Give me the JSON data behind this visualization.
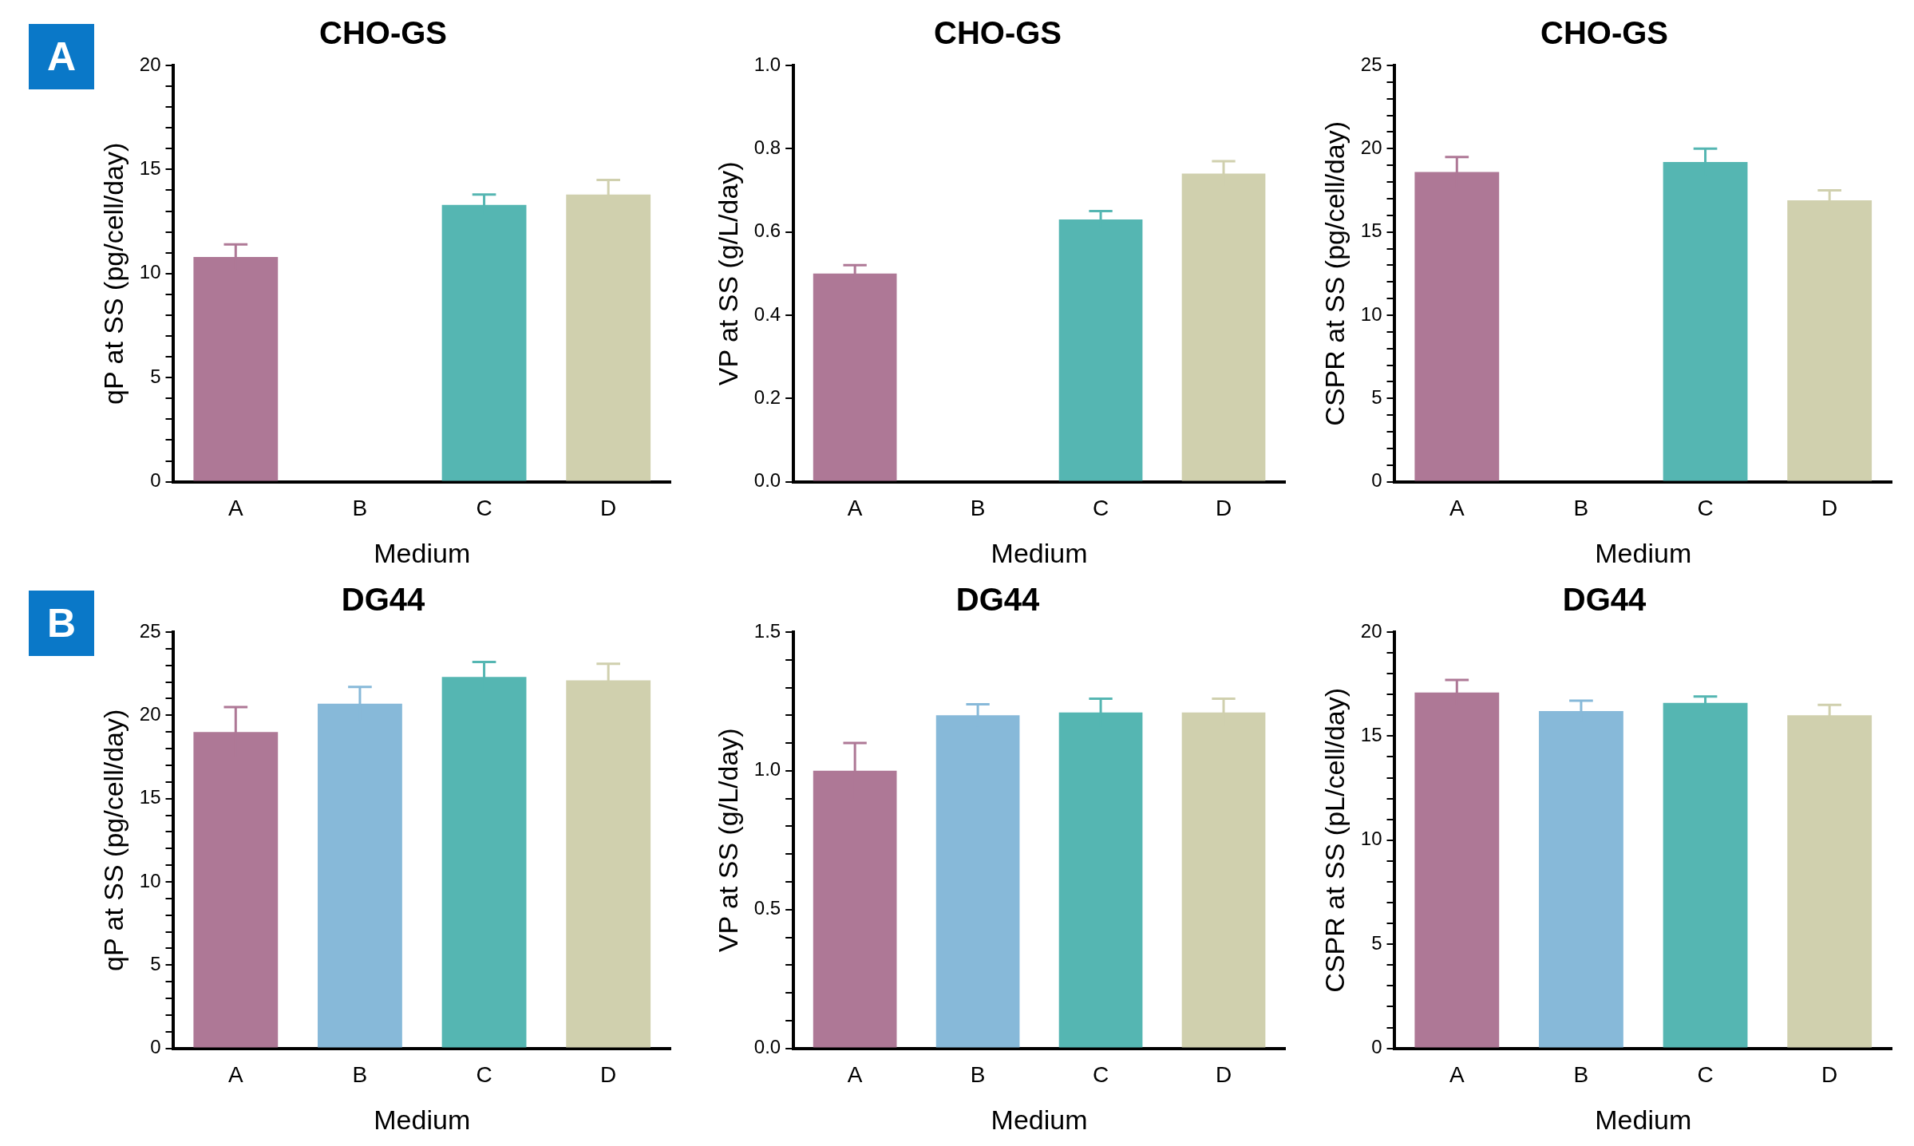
{
  "chart_data": [
    {
      "type": "bar",
      "title": "CHO-GS",
      "xlabel": "Medium",
      "ylabel": "qP at SS (pg/cell/day)",
      "annotations": [
        "A"
      ],
      "categories": [
        "A",
        "B",
        "C",
        "D"
      ],
      "values": [
        10.8,
        null,
        13.3,
        13.8
      ],
      "errors": [
        0.6,
        null,
        0.5,
        0.7
      ],
      "colors": [
        "#ae7896",
        "#87b9d9",
        "#55b6b2",
        "#d0d0ae"
      ],
      "ylim": [
        0,
        20
      ],
      "yticks": [
        0,
        {
          "value": 1,
          "label": null
        },
        {
          "value": 2,
          "label": null
        },
        {
          "value": 3,
          "label": null
        },
        {
          "value": 4,
          "label": null
        },
        5,
        {
          "value": 6,
          "label": null
        },
        {
          "value": 7,
          "label": null
        },
        {
          "value": 8,
          "label": null
        },
        {
          "value": 9,
          "label": null
        },
        10,
        {
          "value": 11,
          "label": null
        },
        {
          "value": 12,
          "label": null
        },
        {
          "value": 13,
          "label": null
        },
        {
          "value": 14,
          "label": null
        },
        15,
        {
          "value": 16,
          "label": null
        },
        {
          "value": 17,
          "label": null
        },
        {
          "value": 18,
          "label": null
        },
        {
          "value": 19,
          "label": null
        },
        20
      ],
      "grid": false,
      "legend": false
    },
    {
      "type": "bar",
      "title": "CHO-GS",
      "xlabel": "Medium",
      "ylabel": "VP at SS (g/L/day)",
      "categories": [
        "A",
        "B",
        "C",
        "D"
      ],
      "values": [
        0.5,
        null,
        0.63,
        0.74
      ],
      "errors": [
        0.02,
        null,
        0.02,
        0.03
      ],
      "colors": [
        "#ae7896",
        "#87b9d9",
        "#55b6b2",
        "#d0d0ae"
      ],
      "ylim": [
        0,
        1
      ],
      "yticks": [
        {
          "value": 0,
          "label": "0.0"
        },
        0.2,
        0.4,
        0.6,
        0.8,
        {
          "value": 1,
          "label": "1.0"
        }
      ],
      "grid": false,
      "legend": false
    },
    {
      "type": "bar",
      "title": "CHO-GS",
      "xlabel": "Medium",
      "ylabel": "CSPR at SS (pg/cell/day)",
      "categories": [
        "A",
        "B",
        "C",
        "D"
      ],
      "values": [
        18.6,
        null,
        19.2,
        16.9
      ],
      "errors": [
        0.9,
        null,
        0.8,
        0.6
      ],
      "colors": [
        "#ae7896",
        "#87b9d9",
        "#55b6b2",
        "#d0d0ae"
      ],
      "ylim": [
        0,
        25
      ],
      "yticks": [
        0,
        {
          "value": 1,
          "label": null
        },
        {
          "value": 2,
          "label": null
        },
        {
          "value": 3,
          "label": null
        },
        {
          "value": 4,
          "label": null
        },
        5,
        {
          "value": 6,
          "label": null
        },
        {
          "value": 7,
          "label": null
        },
        {
          "value": 8,
          "label": null
        },
        {
          "value": 9,
          "label": null
        },
        10,
        {
          "value": 11,
          "label": null
        },
        {
          "value": 12,
          "label": null
        },
        {
          "value": 13,
          "label": null
        },
        {
          "value": 14,
          "label": null
        },
        15,
        {
          "value": 16,
          "label": null
        },
        {
          "value": 17,
          "label": null
        },
        {
          "value": 18,
          "label": null
        },
        {
          "value": 19,
          "label": null
        },
        20,
        {
          "value": 21,
          "label": null
        },
        {
          "value": 22,
          "label": null
        },
        {
          "value": 23,
          "label": null
        },
        {
          "value": 24,
          "label": null
        },
        25
      ],
      "grid": false,
      "legend": false
    },
    {
      "type": "bar",
      "title": "DG44",
      "xlabel": "Medium",
      "ylabel": "qP at SS (pg/cell/day)",
      "annotations": [
        "B"
      ],
      "categories": [
        "A",
        "B",
        "C",
        "D"
      ],
      "values": [
        19,
        20.7,
        22.3,
        22.1
      ],
      "errors": [
        1.5,
        1,
        0.9,
        1
      ],
      "colors": [
        "#ae7896",
        "#87b9d9",
        "#55b6b2",
        "#d0d0ae"
      ],
      "ylim": [
        0,
        25
      ],
      "yticks": [
        0,
        {
          "value": 1,
          "label": null
        },
        {
          "value": 2,
          "label": null
        },
        {
          "value": 3,
          "label": null
        },
        {
          "value": 4,
          "label": null
        },
        5,
        {
          "value": 6,
          "label": null
        },
        {
          "value": 7,
          "label": null
        },
        {
          "value": 8,
          "label": null
        },
        {
          "value": 9,
          "label": null
        },
        10,
        {
          "value": 11,
          "label": null
        },
        {
          "value": 12,
          "label": null
        },
        {
          "value": 13,
          "label": null
        },
        {
          "value": 14,
          "label": null
        },
        15,
        {
          "value": 16,
          "label": null
        },
        {
          "value": 17,
          "label": null
        },
        {
          "value": 18,
          "label": null
        },
        {
          "value": 19,
          "label": null
        },
        20,
        {
          "value": 21,
          "label": null
        },
        {
          "value": 22,
          "label": null
        },
        {
          "value": 23,
          "label": null
        },
        {
          "value": 24,
          "label": null
        },
        25
      ],
      "grid": false,
      "legend": false
    },
    {
      "type": "bar",
      "title": "DG44",
      "xlabel": "Medium",
      "ylabel": "VP at SS (g/L/day)",
      "categories": [
        "A",
        "B",
        "C",
        "D"
      ],
      "values": [
        1,
        1.2,
        1.21,
        1.21
      ],
      "errors": [
        0.1,
        0.04,
        0.05,
        0.05
      ],
      "colors": [
        "#ae7896",
        "#87b9d9",
        "#55b6b2",
        "#d0d0ae"
      ],
      "ylim": [
        0,
        1.5
      ],
      "yticks": [
        {
          "value": 0,
          "label": "0.0"
        },
        {
          "value": 0.1,
          "label": null
        },
        {
          "value": 0.2,
          "label": null
        },
        {
          "value": 0.3,
          "label": null
        },
        {
          "value": 0.4,
          "label": null
        },
        0.5,
        {
          "value": 0.6,
          "label": null
        },
        {
          "value": 0.7,
          "label": null
        },
        {
          "value": 0.8,
          "label": null
        },
        {
          "value": 0.9,
          "label": null
        },
        {
          "value": 1,
          "label": "1.0"
        },
        {
          "value": 1.1,
          "label": null
        },
        {
          "value": 1.2,
          "label": null
        },
        {
          "value": 1.3,
          "label": null
        },
        {
          "value": 1.4,
          "label": null
        },
        1.5
      ],
      "grid": false,
      "legend": false
    },
    {
      "type": "bar",
      "title": "DG44",
      "xlabel": "Medium",
      "ylabel": "CSPR at SS (pL/cell/day)",
      "categories": [
        "A",
        "B",
        "C",
        "D"
      ],
      "values": [
        17.1,
        16.2,
        16.6,
        16
      ],
      "errors": [
        0.6,
        0.5,
        0.3,
        0.5
      ],
      "colors": [
        "#ae7896",
        "#87b9d9",
        "#55b6b2",
        "#d0d0ae"
      ],
      "ylim": [
        0,
        20
      ],
      "yticks": [
        0,
        {
          "value": 1,
          "label": null
        },
        {
          "value": 2,
          "label": null
        },
        {
          "value": 3,
          "label": null
        },
        {
          "value": 4,
          "label": null
        },
        5,
        {
          "value": 6,
          "label": null
        },
        {
          "value": 7,
          "label": null
        },
        {
          "value": 8,
          "label": null
        },
        {
          "value": 9,
          "label": null
        },
        10,
        {
          "value": 11,
          "label": null
        },
        {
          "value": 12,
          "label": null
        },
        {
          "value": 13,
          "label": null
        },
        {
          "value": 14,
          "label": null
        },
        15,
        {
          "value": 16,
          "label": null
        },
        {
          "value": 17,
          "label": null
        },
        {
          "value": 18,
          "label": null
        },
        {
          "value": 19,
          "label": null
        },
        20
      ],
      "grid": false,
      "legend": false
    }
  ]
}
